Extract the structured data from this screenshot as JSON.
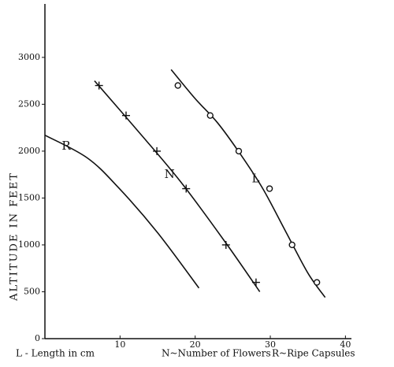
{
  "chart_data": {
    "type": "line",
    "ylabel": "ALTITUDE IN FEET",
    "x_labels": [
      "L - Length in cm",
      "N~Number of Flowers",
      "R~Ripe Capsules"
    ],
    "xlim": [
      0,
      40.8
    ],
    "xticks": [
      10,
      20,
      30,
      40
    ],
    "ylim": [
      0,
      3570
    ],
    "yticks": [
      0,
      500,
      1000,
      1500,
      2000,
      2500,
      3000
    ],
    "color": "#111111",
    "series": [
      {
        "name": "L",
        "marker": "circle",
        "x": [
          17.7,
          22.0,
          25.8,
          29.9,
          32.9,
          36.2
        ],
        "values": [
          2700,
          2380,
          2000,
          1600,
          1000,
          600
        ],
        "fit_x": [
          16.8,
          20,
          23,
          26,
          29,
          32,
          35,
          37.3
        ],
        "fit_values": [
          2870,
          2560,
          2300,
          1970,
          1600,
          1150,
          700,
          440
        ]
      },
      {
        "name": "N",
        "marker": "plus",
        "x": [
          7.2,
          10.8,
          14.9,
          18.8,
          24.1,
          28.1
        ],
        "values": [
          2700,
          2380,
          2000,
          1600,
          1000,
          600
        ],
        "fit_x": [
          6.6,
          12,
          18,
          24,
          28.6
        ],
        "fit_values": [
          2750,
          2250,
          1680,
          1030,
          500
        ]
      },
      {
        "name": "R",
        "marker": "none",
        "x": [],
        "values": [],
        "fit_x": [
          0,
          5.6,
          9.8,
          15,
          20.5
        ],
        "fit_values": [
          2170,
          1930,
          1610,
          1130,
          540
        ]
      }
    ]
  }
}
